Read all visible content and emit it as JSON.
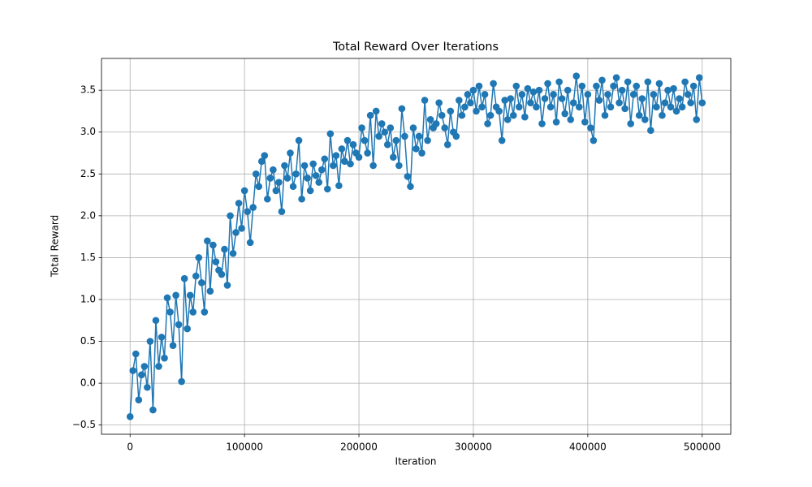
{
  "chart_data": {
    "type": "line",
    "title": "Total Reward Over Iterations",
    "x_label": "Iteration",
    "y_label": "Total Reward",
    "x": [
      0,
      2500,
      5000,
      7500,
      10000,
      12500,
      15000,
      17500,
      20000,
      22500,
      25000,
      27500,
      30000,
      32500,
      35000,
      37500,
      40000,
      42500,
      45000,
      47500,
      50000,
      52500,
      55000,
      57500,
      60000,
      62500,
      65000,
      67500,
      70000,
      72500,
      75000,
      77500,
      80000,
      82500,
      85000,
      87500,
      90000,
      92500,
      95000,
      97500,
      100000,
      102500,
      105000,
      107500,
      110000,
      112500,
      115000,
      117500,
      120000,
      122500,
      125000,
      127500,
      130000,
      132500,
      135000,
      137500,
      140000,
      142500,
      145000,
      147500,
      150000,
      152500,
      155000,
      157500,
      160000,
      162500,
      165000,
      167500,
      170000,
      172500,
      175000,
      177500,
      180000,
      182500,
      185000,
      187500,
      190000,
      192500,
      195000,
      197500,
      200000,
      202500,
      205000,
      207500,
      210000,
      212500,
      215000,
      217500,
      220000,
      222500,
      225000,
      227500,
      230000,
      232500,
      235000,
      237500,
      240000,
      242500,
      245000,
      247500,
      250000,
      252500,
      255000,
      257500,
      260000,
      262500,
      265000,
      267500,
      270000,
      272500,
      275000,
      277500,
      280000,
      282500,
      285000,
      287500,
      290000,
      292500,
      295000,
      297500,
      300000,
      302500,
      305000,
      307500,
      310000,
      312500,
      315000,
      317500,
      320000,
      322500,
      325000,
      327500,
      330000,
      332500,
      335000,
      337500,
      340000,
      342500,
      345000,
      347500,
      350000,
      352500,
      355000,
      357500,
      360000,
      362500,
      365000,
      367500,
      370000,
      372500,
      375000,
      377500,
      380000,
      382500,
      385000,
      387500,
      390000,
      392500,
      395000,
      397500,
      400000,
      402500,
      405000,
      407500,
      410000,
      412500,
      415000,
      417500,
      420000,
      422500,
      425000,
      427500,
      430000,
      432500,
      435000,
      437500,
      440000,
      442500,
      445000,
      447500,
      450000,
      452500,
      455000,
      457500,
      460000,
      462500,
      465000,
      467500,
      470000,
      472500,
      475000,
      477500,
      480000,
      482500,
      485000,
      487500,
      490000,
      492500,
      495000,
      497500,
      500000
    ],
    "series": [
      {
        "name": "Total Reward",
        "color": "#1f77b4",
        "values": [
          -0.4,
          0.15,
          0.35,
          -0.2,
          0.1,
          0.2,
          -0.05,
          0.5,
          -0.32,
          0.75,
          0.2,
          0.55,
          0.3,
          1.02,
          0.85,
          0.45,
          1.05,
          0.7,
          0.02,
          1.25,
          0.65,
          1.05,
          0.85,
          1.28,
          1.5,
          1.2,
          0.85,
          1.7,
          1.1,
          1.65,
          1.45,
          1.35,
          1.3,
          1.6,
          1.17,
          2.0,
          1.55,
          1.8,
          2.15,
          1.85,
          2.3,
          2.05,
          1.68,
          2.1,
          2.5,
          2.35,
          2.65,
          2.72,
          2.2,
          2.45,
          2.55,
          2.3,
          2.4,
          2.05,
          2.6,
          2.45,
          2.75,
          2.35,
          2.5,
          2.9,
          2.2,
          2.6,
          2.45,
          2.3,
          2.62,
          2.48,
          2.4,
          2.55,
          2.68,
          2.32,
          2.98,
          2.6,
          2.72,
          2.36,
          2.8,
          2.65,
          2.9,
          2.62,
          2.85,
          2.75,
          2.7,
          3.05,
          2.9,
          2.75,
          3.2,
          2.6,
          3.25,
          2.95,
          3.1,
          3.0,
          2.85,
          3.05,
          2.7,
          2.9,
          2.6,
          3.28,
          2.95,
          2.47,
          2.35,
          3.05,
          2.8,
          2.95,
          2.75,
          3.38,
          2.9,
          3.15,
          3.05,
          3.1,
          3.35,
          3.2,
          3.05,
          2.85,
          3.25,
          3.0,
          2.95,
          3.38,
          3.2,
          3.3,
          3.45,
          3.35,
          3.5,
          3.25,
          3.55,
          3.3,
          3.45,
          3.1,
          3.2,
          3.58,
          3.3,
          3.25,
          2.9,
          3.38,
          3.15,
          3.4,
          3.2,
          3.55,
          3.3,
          3.45,
          3.18,
          3.52,
          3.35,
          3.48,
          3.3,
          3.5,
          3.1,
          3.4,
          3.58,
          3.3,
          3.45,
          3.12,
          3.6,
          3.4,
          3.22,
          3.5,
          3.15,
          3.35,
          3.67,
          3.3,
          3.55,
          3.12,
          3.45,
          3.05,
          2.9,
          3.55,
          3.38,
          3.62,
          3.2,
          3.45,
          3.3,
          3.55,
          3.65,
          3.35,
          3.5,
          3.28,
          3.6,
          3.1,
          3.45,
          3.55,
          3.2,
          3.4,
          3.15,
          3.6,
          3.02,
          3.45,
          3.3,
          3.58,
          3.2,
          3.35,
          3.5,
          3.3,
          3.52,
          3.25,
          3.4,
          3.3,
          3.6,
          3.45,
          3.35,
          3.55,
          3.15,
          3.65,
          3.35
        ]
      }
    ],
    "xlim": [
      -25000,
      525000
    ],
    "ylim": [
      -0.61,
      3.88
    ],
    "xticks": [
      0,
      100000,
      200000,
      300000,
      400000,
      500000
    ],
    "yticks": [
      {
        "value": -0.5,
        "label": "−0.5"
      },
      {
        "value": 0,
        "label": "0.0"
      },
      0.5,
      {
        "value": 1,
        "label": "1.0"
      },
      1.5,
      {
        "value": 2,
        "label": "2.0"
      },
      2.5,
      {
        "value": 3,
        "label": "3.0"
      },
      3.5
    ],
    "grid": true
  }
}
